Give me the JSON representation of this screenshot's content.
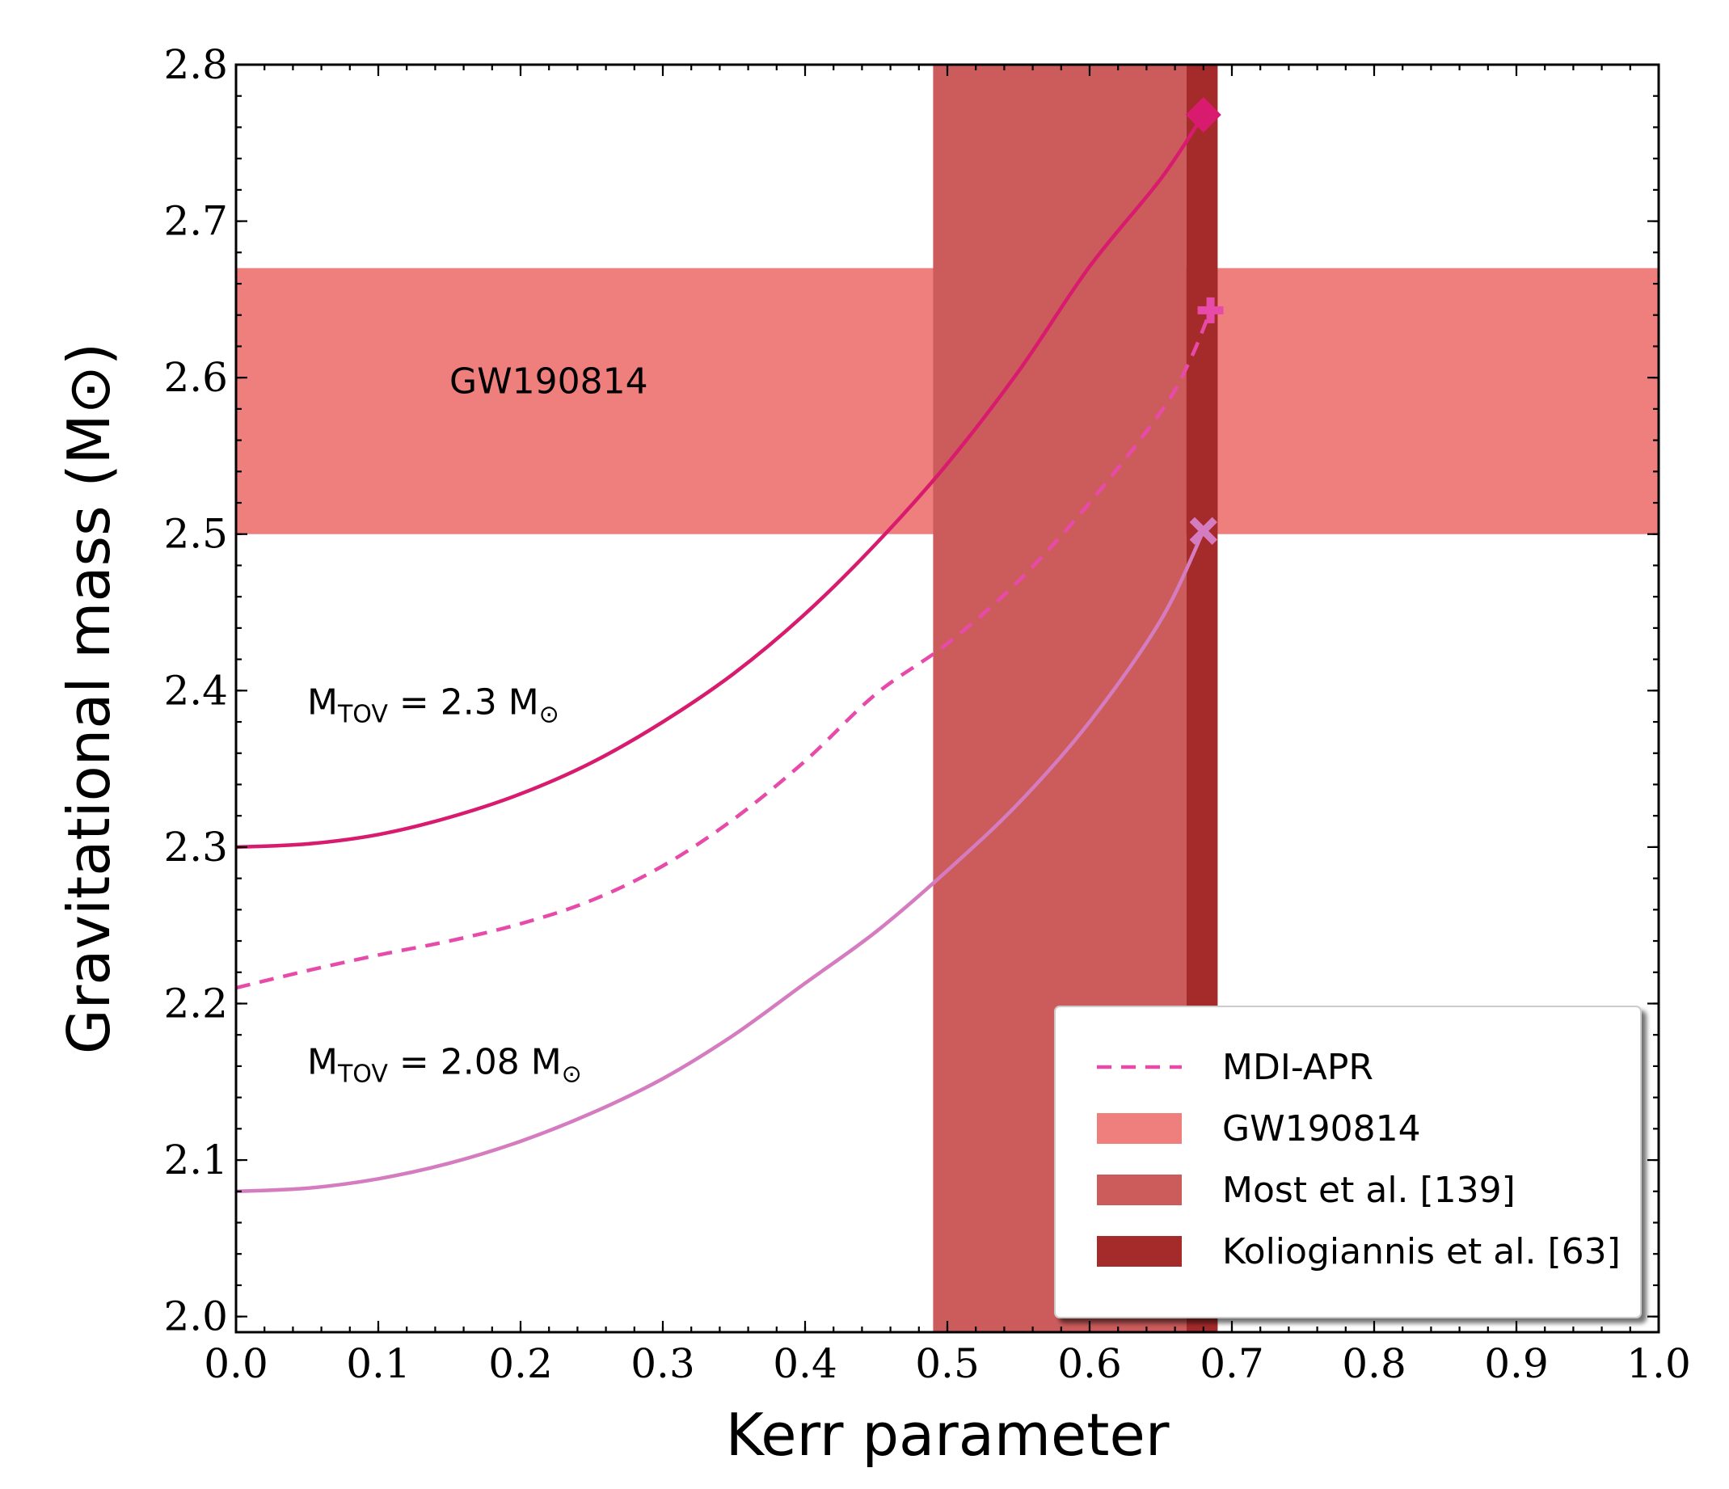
{
  "chart_data": {
    "type": "line",
    "xlabel": "Kerr parameter",
    "ylabel": "Gravitational mass (M⊙)",
    "xlim": [
      0.0,
      1.0
    ],
    "ylim": [
      1.99,
      2.8
    ],
    "xticks": [
      0.0,
      0.1,
      0.2,
      0.3,
      0.4,
      0.5,
      0.6,
      0.7,
      0.8,
      0.9,
      1.0
    ],
    "xtick_labels": [
      "0.0",
      "0.1",
      "0.2",
      "0.3",
      "0.4",
      "0.5",
      "0.6",
      "0.7",
      "0.8",
      "0.9",
      "1.0"
    ],
    "yticks": [
      2.0,
      2.1,
      2.2,
      2.3,
      2.4,
      2.5,
      2.6,
      2.7,
      2.8
    ],
    "ytick_labels": [
      "2.0",
      "2.1",
      "2.2",
      "2.3",
      "2.4",
      "2.5",
      "2.6",
      "2.7",
      "2.8"
    ],
    "bands": [
      {
        "name": "GW190814",
        "orientation": "horizontal",
        "range": [
          2.5,
          2.67
        ],
        "color": "#ee7f7c"
      },
      {
        "name": "Most et al. [139]",
        "orientation": "vertical",
        "range": [
          0.49,
          0.668
        ],
        "color": "#cc5c5c"
      },
      {
        "name": "Koliogiannis et al. [63]",
        "orientation": "vertical",
        "range": [
          0.668,
          0.69
        ],
        "color": "#a52a2a"
      }
    ],
    "series": [
      {
        "name": "M_TOV = 2.3 M⊙",
        "style": "solid",
        "color": "#d81b6e",
        "x": [
          0.0,
          0.05,
          0.1,
          0.15,
          0.2,
          0.25,
          0.3,
          0.35,
          0.4,
          0.45,
          0.5,
          0.55,
          0.6,
          0.65,
          0.68
        ],
        "y": [
          2.3,
          2.302,
          2.308,
          2.319,
          2.334,
          2.354,
          2.38,
          2.411,
          2.449,
          2.494,
          2.545,
          2.604,
          2.671,
          2.727,
          2.768
        ],
        "end_marker": "diamond"
      },
      {
        "name": "MDI-APR",
        "style": "dashed",
        "color": "#e84aa9",
        "x": [
          0.0,
          0.05,
          0.1,
          0.15,
          0.2,
          0.25,
          0.3,
          0.35,
          0.4,
          0.45,
          0.5,
          0.55,
          0.6,
          0.65,
          0.67,
          0.685
        ],
        "y": [
          2.21,
          2.221,
          2.231,
          2.24,
          2.251,
          2.266,
          2.288,
          2.318,
          2.355,
          2.398,
          2.43,
          2.47,
          2.52,
          2.578,
          2.61,
          2.643
        ],
        "end_marker": "plus"
      },
      {
        "name": "M_TOV = 2.08 M⊙",
        "style": "solid",
        "color": "#d47cbf",
        "x": [
          0.0,
          0.05,
          0.1,
          0.15,
          0.2,
          0.25,
          0.3,
          0.35,
          0.4,
          0.45,
          0.5,
          0.55,
          0.6,
          0.65,
          0.68
        ],
        "y": [
          2.08,
          2.082,
          2.088,
          2.098,
          2.112,
          2.13,
          2.152,
          2.18,
          2.213,
          2.246,
          2.285,
          2.328,
          2.38,
          2.445,
          2.502
        ],
        "end_marker": "x"
      }
    ],
    "annotations": [
      {
        "text": "GW190814",
        "x": 0.15,
        "y": 2.59
      },
      {
        "text": "M",
        "sub": "TOV",
        "rest": " = 2.3 M",
        "sym": "⊙",
        "x": 0.05,
        "y": 2.385
      },
      {
        "text": "M",
        "sub": "TOV",
        "rest": " = 2.08 M",
        "sym": "⊙",
        "x": 0.05,
        "y": 2.155
      }
    ],
    "legend": {
      "position": "bottom-right",
      "entries": [
        {
          "label": "MDI-APR",
          "kind": "dashed-line",
          "color": "#e84aa9"
        },
        {
          "label": "GW190814",
          "kind": "patch",
          "color": "#ee7f7c"
        },
        {
          "label": "Most et al. [139]",
          "kind": "patch",
          "color": "#cc5c5c"
        },
        {
          "label": "Koliogiannis et al. [63]",
          "kind": "patch",
          "color": "#a52a2a"
        }
      ]
    }
  }
}
